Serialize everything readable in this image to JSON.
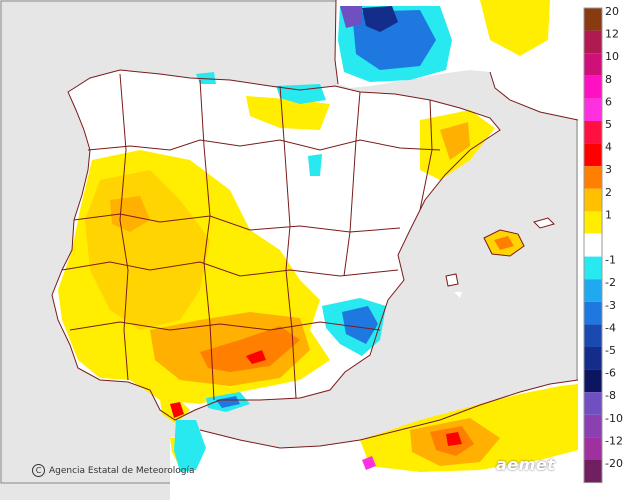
{
  "credit": {
    "text": "Agencia Estatal de Meteorología",
    "copyright_symbol": "C"
  },
  "logo": {
    "text": "aemet"
  },
  "colors": {
    "sea": "#e6e6e6",
    "land": "#ffffff",
    "border": "#7a1a1a",
    "pale_yellow": "#ffee00",
    "light_orange": "#ffd400",
    "orange": "#ffb000",
    "dark_orange": "#ff8000",
    "red": "#ff0000",
    "cyan": "#22e0e8",
    "blue": "#2a6fd6",
    "dark_blue": "#1c3a9a",
    "purple": "#7a4ac0"
  },
  "legend": [
    {
      "label": "20",
      "color": "#8a3a10"
    },
    {
      "label": "12",
      "color": "#b01a50"
    },
    {
      "label": "10",
      "color": "#d0107a"
    },
    {
      "label": "8",
      "color": "#ff10c0"
    },
    {
      "label": "6",
      "color": "#ff30e0"
    },
    {
      "label": "5",
      "color": "#ff1040"
    },
    {
      "label": "4",
      "color": "#ff0000"
    },
    {
      "label": "3",
      "color": "#ff8000"
    },
    {
      "label": "2",
      "color": "#ffc000"
    },
    {
      "label": "1",
      "color": "#ffee00"
    },
    {
      "label": "",
      "color": "#ffffff"
    },
    {
      "label": "-1",
      "color": "#28e8f0"
    },
    {
      "label": "-2",
      "color": "#20a8f0"
    },
    {
      "label": "-3",
      "color": "#1e78e0"
    },
    {
      "label": "-4",
      "color": "#1a4ab0"
    },
    {
      "label": "-5",
      "color": "#142c8a"
    },
    {
      "label": "-6",
      "color": "#0c1660"
    },
    {
      "label": "-8",
      "color": "#7050c0"
    },
    {
      "label": "-10",
      "color": "#8a40b0"
    },
    {
      "label": "-12",
      "color": "#a030a0"
    },
    {
      "label": "-20",
      "color": "#702060"
    }
  ]
}
